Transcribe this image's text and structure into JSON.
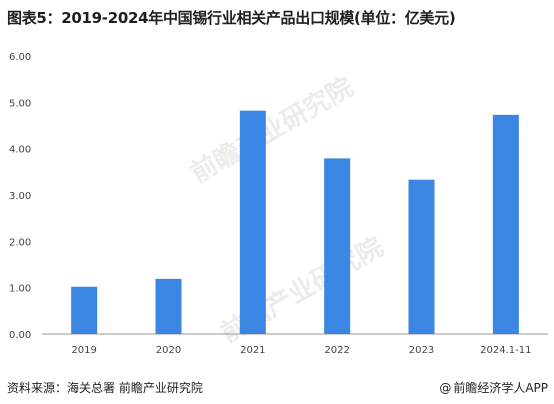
{
  "title": "图表5：2019-2024年中国锡行业相关产品出口规模(单位：亿美元)",
  "source": "资料来源：海关总署 前瞻产业研究院",
  "brand": "前瞻经济学人APP",
  "brand_icon": "at-icon",
  "watermark": "前瞻产业研究院",
  "colors": {
    "bar": "#3b86e3",
    "axis": "#999999",
    "text": "#444444"
  },
  "chart_data": {
    "type": "bar",
    "title": "图表5：2019-2024年中国锡行业相关产品出口规模(单位：亿美元)",
    "categories": [
      "2019",
      "2020",
      "2021",
      "2022",
      "2023",
      "2024.1-11"
    ],
    "values": [
      1.02,
      1.19,
      4.82,
      3.79,
      3.33,
      4.73
    ],
    "ylim": [
      0,
      6
    ],
    "yticks": [
      "0.00",
      "1.00",
      "2.00",
      "3.00",
      "4.00",
      "5.00",
      "6.00"
    ],
    "ytick_values": [
      0,
      1,
      2,
      3,
      4,
      5,
      6
    ],
    "grid": false
  }
}
